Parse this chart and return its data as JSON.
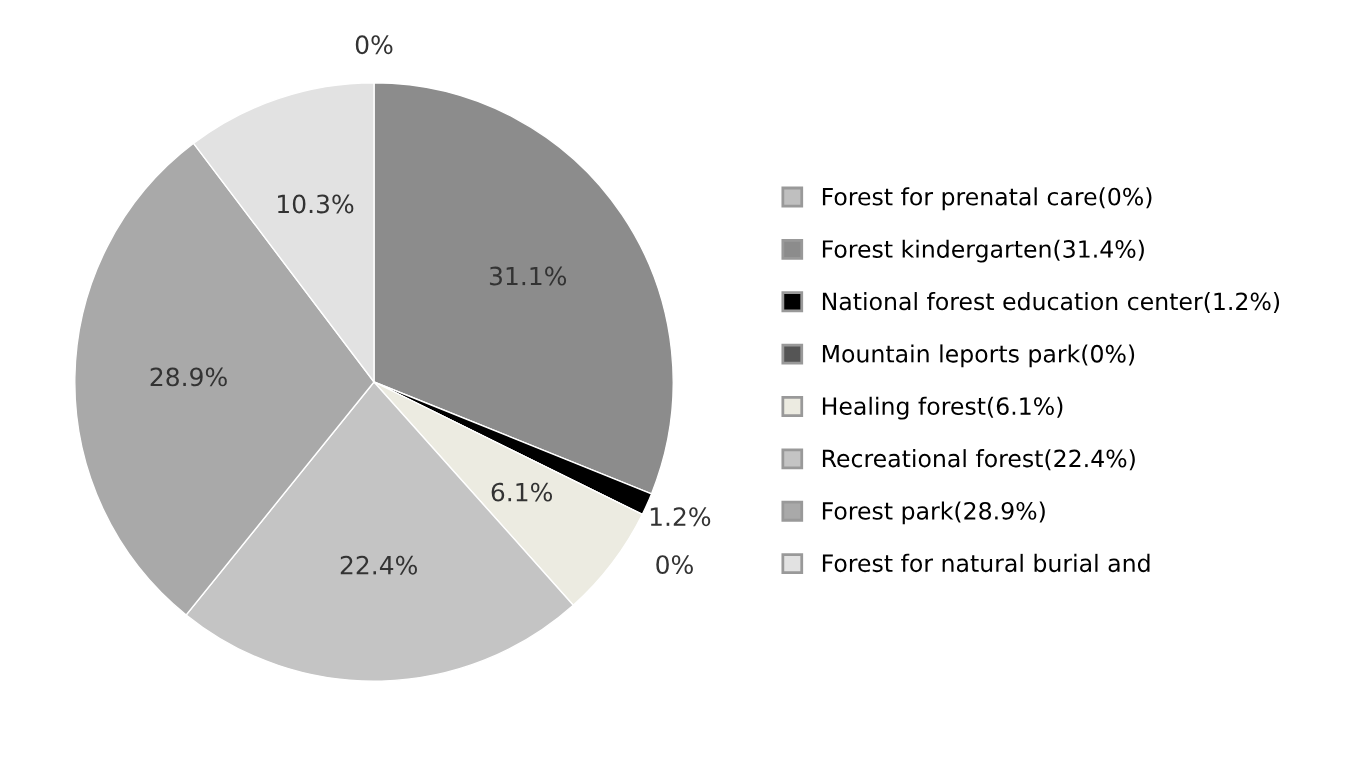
{
  "chart_data": {
    "type": "pie",
    "categories": [
      "Forest for prenatal care(0%)",
      "Forest kindergarten(31.4%)",
      "National forest education center(1.2%)",
      "Mountain leports park(0%)",
      "Healing forest(6.1%)",
      "Recreational forest(22.4%)",
      "Forest park(28.9%)",
      "Forest for natural burial and"
    ],
    "values": [
      0,
      31.1,
      1.2,
      0,
      6.1,
      22.4,
      28.9,
      10.3
    ],
    "value_labels": [
      "0%",
      "31.1%",
      "1.2%",
      "0%",
      "6.1%",
      "22.4%",
      "28.9%",
      "10.3%"
    ],
    "colors": [
      "#bfbfbf",
      "#8c8c8c",
      "#000000",
      "#555555",
      "#ecebe1",
      "#c4c4c4",
      "#a9a9a9",
      "#e2e2e2"
    ],
    "legend": "right"
  }
}
